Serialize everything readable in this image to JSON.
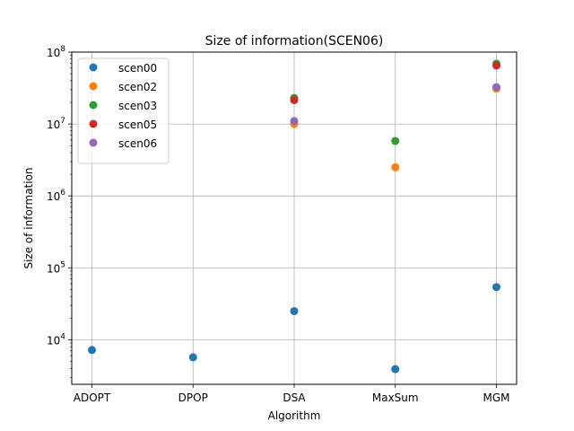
{
  "chart_data": {
    "type": "scatter",
    "title": "Size of information(SCEN06)",
    "xlabel": "Algorithm",
    "ylabel": "Size of information",
    "categories": [
      "ADOPT",
      "DPOP",
      "DSA",
      "MaxSum",
      "MGM"
    ],
    "yscale": "log",
    "ylim": [
      2400,
      100000000
    ],
    "yticks": [
      {
        "value": 10000,
        "label": "10^4"
      },
      {
        "value": 100000,
        "label": "10^5"
      },
      {
        "value": 1000000,
        "label": "10^6"
      },
      {
        "value": 10000000,
        "label": "10^7"
      },
      {
        "value": 100000000,
        "label": "10^8"
      }
    ],
    "grid": true,
    "legend_position": "top-left",
    "series": [
      {
        "name": "scen00",
        "color": "#1f77b4",
        "values": [
          7200,
          5700,
          25000,
          3900,
          54000
        ]
      },
      {
        "name": "scen02",
        "color": "#ff7f0e",
        "values": [
          null,
          null,
          10000000,
          2500000,
          31000000
        ]
      },
      {
        "name": "scen03",
        "color": "#2ca02c",
        "values": [
          null,
          null,
          23000000,
          5800000,
          69000000
        ]
      },
      {
        "name": "scen05",
        "color": "#d62728",
        "values": [
          null,
          null,
          21500000,
          null,
          65000000
        ]
      },
      {
        "name": "scen06",
        "color": "#9467bd",
        "values": [
          null,
          null,
          11000000,
          null,
          32500000
        ]
      }
    ]
  }
}
